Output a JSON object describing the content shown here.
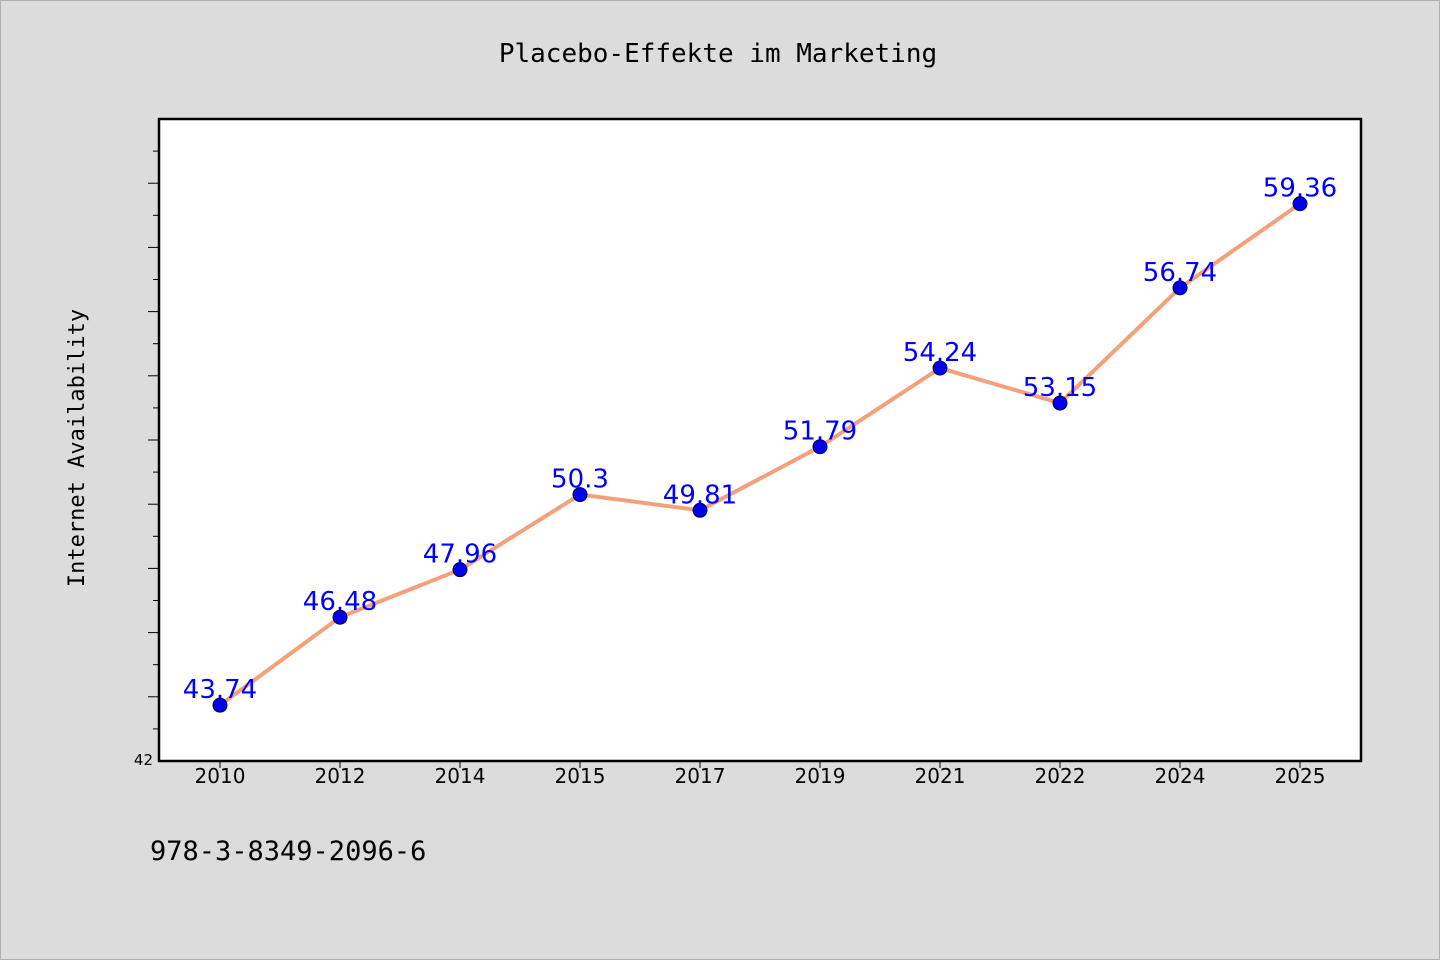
{
  "chart_data": {
    "type": "line",
    "title": "Placebo-Effekte im Marketing",
    "xlabel": "",
    "ylabel": "Internet Availability",
    "categories": [
      "2010",
      "2012",
      "2014",
      "2015",
      "2017",
      "2019",
      "2021",
      "2022",
      "2024",
      "2025"
    ],
    "series": [
      {
        "values": [
          43.74,
          46.48,
          47.96,
          50.3,
          49.81,
          51.79,
          54.24,
          53.15,
          56.74,
          59.36
        ],
        "labels": [
          "43.74",
          "46.48",
          "47.96",
          "50.3",
          "49.81",
          "51.79",
          "54.24",
          "53.15",
          "56.74",
          "59.36"
        ]
      }
    ],
    "ylim": [
      42,
      62
    ],
    "y_tick_labels": [
      "42"
    ],
    "grid": false,
    "legend": "none",
    "colors": {
      "line": "#f4a07a",
      "marker": "#0000ee",
      "data_label": "#0000ff",
      "axis": "#000000",
      "background": "#dcdcdc",
      "plot_background": "#ffffff"
    }
  },
  "footer": {
    "isbn": "978-3-8349-2096-6"
  }
}
